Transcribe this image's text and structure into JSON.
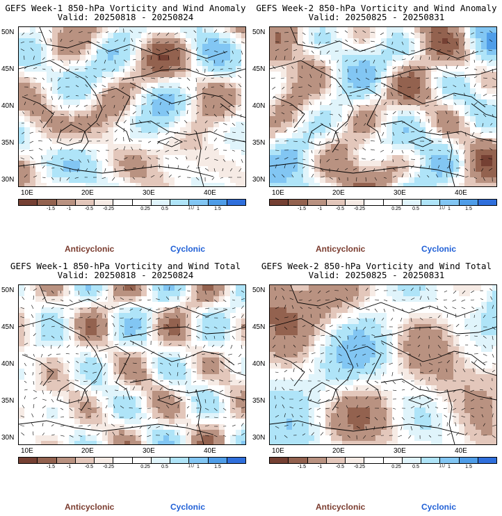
{
  "colors": {
    "bins": [
      "#754033",
      "#93624f",
      "#b99281",
      "#e3c7bb",
      "#f6ebe5",
      "#ffffff",
      "#ffffff",
      "#e0f4fb",
      "#afe4f8",
      "#82c6f3",
      "#4f9de8",
      "#2f6fdc"
    ],
    "anticyclonic": "#7a3b2e",
    "cyclonic": "#1f5fd6",
    "map_background": "#ffffff",
    "coast": "#000000"
  },
  "legend": {
    "ticks": [
      "-1.5",
      "-1",
      "-0.5",
      "-0.25",
      "0.25",
      "0.5",
      "1",
      "1.5"
    ],
    "unit": "10",
    "anticyclonic": "Anticyclonic",
    "cyclonic": "Cyclonic"
  },
  "axes": {
    "lat_labels": [
      "50N",
      "45N",
      "40N",
      "35N",
      "30N"
    ],
    "lon_labels": [
      "10E",
      "20E",
      "30E",
      "40E"
    ]
  },
  "panels": [
    {
      "title1": "GEFS Week-1 850-hPa Vorticity and Wind Anomaly",
      "title2": "Valid: 20250818 - 20250824",
      "seed": 11
    },
    {
      "title1": "GEFS Week-2 850-hPa Vorticity and Wind Anomaly",
      "title2": "Valid: 20250825 - 20250831",
      "seed": 23
    },
    {
      "title1": "GEFS Week-1 850-hPa Vorticity and Wind Total",
      "title2": "Valid: 20250818 - 20250824",
      "seed": 37
    },
    {
      "title1": "GEFS Week-2 850-hPa Vorticity and Wind Total",
      "title2": "Valid: 20250825 - 20250831",
      "seed": 53
    }
  ]
}
